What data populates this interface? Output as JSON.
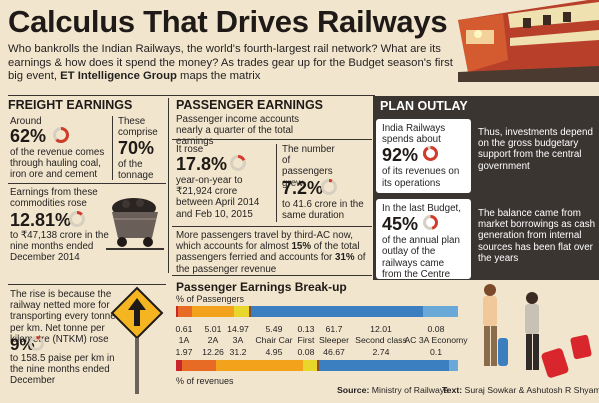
{
  "title": "Calculus That Drives Railways",
  "intro": {
    "text": "Who bankrolls the Indian Railways, the world's fourth-largest rail network? What are its earnings & how does it spend the money? As trades gear up for the Budget season's first big event, ",
    "bold": "ET Intelligence Group",
    "tail": " maps the matrix"
  },
  "freight": {
    "heading": "FREIGHT EARNINGS",
    "around": "Around",
    "pct_revenue": "62%",
    "pct_revenue_text": "of the revenue comes through hauling coal, iron ore and cement",
    "comprise": "These comprise",
    "pct_tonnage": "70%",
    "tonnage_text": "of the tonnage",
    "earnings_intro": "Earnings from these commodities rose",
    "rise_pct": "12.81%",
    "rise_text": "to ₹47,138 crore in the nine months ended December 2014",
    "ntkm_text": "The rise is because the railway netted more for transporting every tonne per km. Net tonne per kilometre (NTKM) rose",
    "ntkm_pct": "9%",
    "ntkm_tail": "to 158.5 paise per km in the nine months ended December"
  },
  "passenger": {
    "heading": "PASSENGER EARNINGS",
    "intro": "Passenger income accounts nearly a quarter of the total earnings",
    "rose_label": "It rose",
    "rose_pct": "17.8%",
    "rose_text": "year-on-year to ₹21,924 crore between April 2014 and Feb 10, 2015",
    "num_label": "The number of passengers grew",
    "num_pct": "7.2%",
    "num_text": "to 41.6 crore in the same duration",
    "ac_text_1": "More passengers travel by third-AC now, which accounts for almost ",
    "ac_bold_1": "15%",
    "ac_text_2": " of the total passengers ferried and accounts for ",
    "ac_bold_2": "31%",
    "ac_text_3": " of the passenger revenue"
  },
  "plan": {
    "heading": "PLAN OUTLAY",
    "spends_text": "India Railways spends about",
    "spends_pct": "92%",
    "spends_tail": "of its revenues on its operations",
    "thus_text": "Thus, investments depend on the gross budgetary support from the central government",
    "last_budget": "In the last Budget,",
    "budget_pct": "45%",
    "budget_tail": "of the annual plan outlay of the railways came from the Centre",
    "balance_text": "The balance came from market borrowings as cash generation from internal sources has been flat over the years"
  },
  "breakup": {
    "heading": "Passenger Earnings Break-up",
    "top_label": "% of Passengers",
    "bottom_label": "% of  revenues",
    "classes": [
      {
        "name": "1A",
        "passengers": "0.61",
        "revenues": "1.97",
        "color": "#c8262c"
      },
      {
        "name": "2A",
        "passengers": "5.01",
        "revenues": "12.26",
        "color": "#e76b25"
      },
      {
        "name": "3A",
        "passengers": "14.97",
        "revenues": "31.2",
        "color": "#f3a31b"
      },
      {
        "name": "Chair Car",
        "passengers": "5.49",
        "revenues": "4.95",
        "color": "#e9d62a"
      },
      {
        "name": "First",
        "passengers": "0.13",
        "revenues": "0.08",
        "color": "#8e4d2a"
      },
      {
        "name": "Sleeper",
        "passengers": "61.7",
        "revenues": "46.67",
        "color": "#3c7fc1"
      },
      {
        "name": "Second class",
        "passengers": "12.01",
        "revenues": "2.74",
        "color": "#6aa8d8"
      },
      {
        "name": "AC 3A Economy",
        "passengers": "0.08",
        "revenues": "0.1",
        "color": "#7cc04a"
      }
    ]
  },
  "chart_data": {
    "type": "bar",
    "title": "Passenger Earnings Break-up",
    "categories": [
      "1A",
      "2A",
      "3A",
      "Chair Car",
      "First",
      "Sleeper",
      "Second class",
      "AC 3A Economy"
    ],
    "series": [
      {
        "name": "% of Passengers",
        "values": [
          0.61,
          5.01,
          14.97,
          5.49,
          0.13,
          61.7,
          12.01,
          0.08
        ]
      },
      {
        "name": "% of  revenues",
        "values": [
          1.97,
          12.26,
          31.2,
          4.95,
          0.08,
          46.67,
          2.74,
          0.1
        ]
      }
    ]
  },
  "footer": {
    "source_label": "Source:",
    "source": "Ministry of Railways",
    "text_label": "Text:",
    "text": "Suraj Sowkar & Ashutosh R Shyam"
  }
}
